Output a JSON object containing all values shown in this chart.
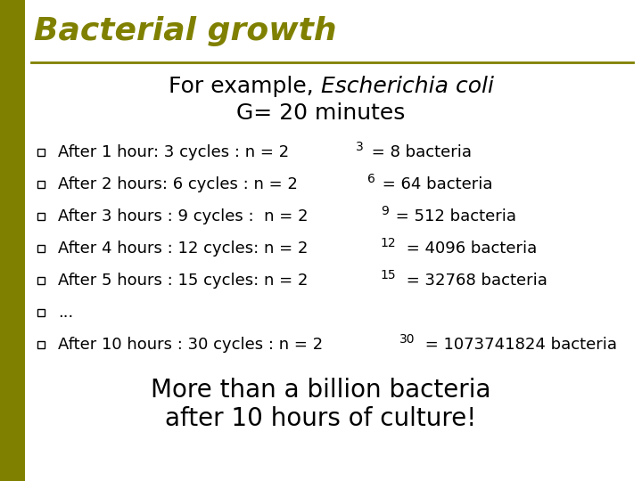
{
  "bg_color": "#ffffff",
  "left_bar_color": "#808000",
  "title": "Bacterial growth",
  "title_color": "#808000",
  "title_fontsize": 26,
  "separator_color": "#808000",
  "subtitle_normal": "For example, ",
  "subtitle_italic": "Escherichia coli",
  "subtitle_line2": "G= 20 minutes",
  "subtitle_fontsize": 18,
  "bullet_items": [
    "After 1 hour: 3 cycles : n = 2",
    "After 2 hours: 6 cycles : n = 2",
    "After 3 hours : 9 cycles :  n = 2",
    "After 4 hours : 12 cycles: n = 2",
    "After 5 hours : 15 cycles: n = 2",
    "...",
    "After 10 hours : 30 cycles : n = 2"
  ],
  "bullet_superscripts": [
    "3",
    "6",
    "9",
    "12",
    "15",
    "",
    "30"
  ],
  "bullet_suffixes": [
    " = 8 bacteria",
    " = 64 bacteria",
    " = 512 bacteria",
    " = 4096 bacteria",
    " = 32768 bacteria",
    "",
    " = 1073741824 bacteria"
  ],
  "bullet_fontsize": 13,
  "bullet_color": "#000000",
  "footer_line1": "More than a billion bacteria",
  "footer_line2": "after 10 hours of culture!",
  "footer_fontsize": 20,
  "footer_color": "#000000"
}
